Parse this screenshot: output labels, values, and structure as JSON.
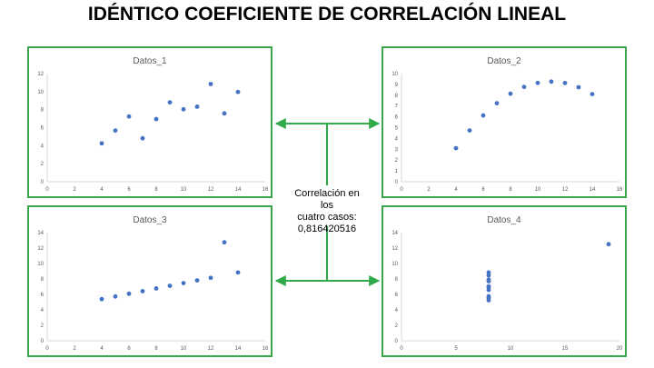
{
  "title": "IDÉNTICO COEFICIENTE DE CORRELACIÓN LINEAL",
  "note": {
    "line1": "Correlación en los",
    "line2": "cuatro casos:",
    "line3": "0,816420516"
  },
  "colors": {
    "frame": "#3aa54a",
    "point": "#4472c4",
    "axis": "#d9d9d9",
    "tick": "#595959",
    "arrow": "#2eaa4a"
  },
  "chart_data": [
    {
      "type": "scatter",
      "title": "Datos_1",
      "xlim": [
        0,
        16
      ],
      "xticks": [
        0,
        2,
        4,
        6,
        8,
        10,
        12,
        14,
        16
      ],
      "ylim": [
        0,
        12
      ],
      "yticks": [
        0,
        2,
        4,
        6,
        8,
        10,
        12
      ],
      "x": [
        10,
        8,
        13,
        9,
        11,
        14,
        6,
        4,
        12,
        7,
        5
      ],
      "y": [
        8.04,
        6.95,
        7.58,
        8.81,
        8.33,
        9.96,
        7.24,
        4.26,
        10.84,
        4.82,
        5.68
      ],
      "grid": false
    },
    {
      "type": "scatter",
      "title": "Datos_2",
      "xlim": [
        0,
        16
      ],
      "xticks": [
        0,
        2,
        4,
        6,
        8,
        10,
        12,
        14,
        16
      ],
      "ylim": [
        0,
        10
      ],
      "yticks": [
        0,
        1,
        2,
        3,
        4,
        5,
        6,
        7,
        8,
        9,
        10
      ],
      "x": [
        10,
        8,
        13,
        9,
        11,
        14,
        6,
        4,
        12,
        7,
        5
      ],
      "y": [
        9.14,
        8.14,
        8.74,
        8.77,
        9.26,
        8.1,
        6.13,
        3.1,
        9.13,
        7.26,
        4.74
      ],
      "grid": false
    },
    {
      "type": "scatter",
      "title": "Datos_3",
      "xlim": [
        0,
        16
      ],
      "xticks": [
        0,
        2,
        4,
        6,
        8,
        10,
        12,
        14,
        16
      ],
      "ylim": [
        0,
        14
      ],
      "yticks": [
        0,
        2,
        4,
        6,
        8,
        10,
        12,
        14
      ],
      "x": [
        10,
        8,
        13,
        9,
        11,
        14,
        6,
        4,
        12,
        7,
        5
      ],
      "y": [
        7.46,
        6.77,
        12.74,
        7.11,
        7.81,
        8.84,
        6.08,
        5.39,
        8.15,
        6.42,
        5.73
      ],
      "grid": false
    },
    {
      "type": "scatter",
      "title": "Datos_4",
      "xlim": [
        0,
        20
      ],
      "xticks": [
        0,
        5,
        10,
        15,
        20
      ],
      "ylim": [
        0,
        14
      ],
      "yticks": [
        0,
        2,
        4,
        6,
        8,
        10,
        12,
        14
      ],
      "x": [
        8,
        8,
        8,
        8,
        8,
        8,
        8,
        19,
        8,
        8,
        8
      ],
      "y": [
        6.58,
        5.76,
        7.71,
        8.84,
        8.47,
        7.04,
        5.25,
        12.5,
        5.56,
        7.91,
        6.89
      ],
      "grid": false
    }
  ]
}
